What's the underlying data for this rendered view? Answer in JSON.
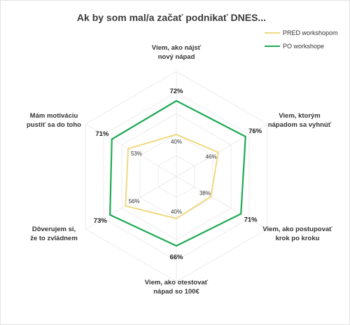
{
  "chart_data": {
    "type": "radar",
    "title": "Ak by som mal/a začať podnikať DNES...",
    "axes": [
      [
        "Viem, ako nájsť",
        "nový nápad"
      ],
      [
        "Viem, ktorým",
        "nápadom sa vyhnúť"
      ],
      [
        "Viem, ako postupovať",
        "krok po kroku"
      ],
      [
        "Viem, ako otestovať",
        "nápad so 100€"
      ],
      [
        "Dôverujem si,",
        "že to zvládnem"
      ],
      [
        "Mám motiváciu",
        "pustiť sa do toho"
      ]
    ],
    "series": [
      {
        "name": "PRED workshopom",
        "color": "#f0d983",
        "values": [
          40,
          46,
          38,
          40,
          56,
          53
        ],
        "labels": [
          "40%",
          "46%",
          "38%",
          "40%",
          "56%",
          "53%"
        ]
      },
      {
        "name": "PO workshope",
        "color": "#1faa53",
        "values": [
          72,
          76,
          71,
          66,
          73,
          71
        ],
        "labels": [
          "72%",
          "76%",
          "71%",
          "66%",
          "73%",
          "71%"
        ]
      }
    ],
    "grid": true,
    "legend_position": "top-right"
  }
}
